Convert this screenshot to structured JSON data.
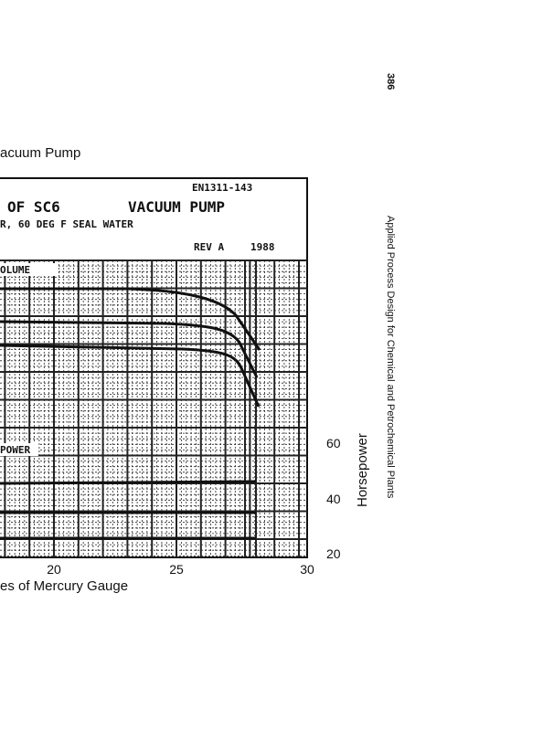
{
  "page": {
    "number": "386",
    "running_head": "Applied Process Design for Chemical and Petrochemical Plants"
  },
  "figure": {
    "caption": "acuum Pump",
    "header": {
      "code": "EN1311-143",
      "title_left": "OF SC6",
      "title_right": "VACUUM PUMP",
      "subtitle": "R, 60 DEG F SEAL WATER",
      "rev": "REV A",
      "year": "1988"
    },
    "labels": {
      "volume": "OLUME",
      "power": "POWER"
    },
    "x_axis": {
      "ticks": [
        20,
        25,
        30
      ],
      "label": "es of Mercury Gauge"
    },
    "y2_axis": {
      "ticks": [
        60,
        40,
        20
      ],
      "label": "Horsepower"
    }
  }
}
